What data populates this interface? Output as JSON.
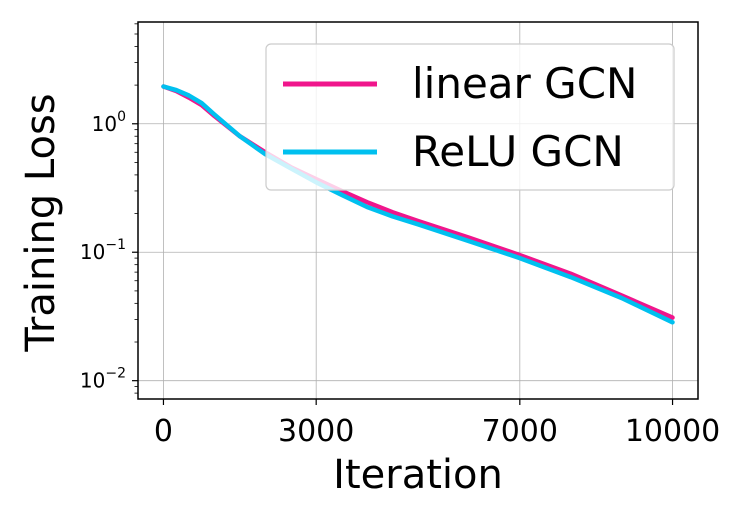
{
  "chart_data": {
    "type": "line",
    "title": "",
    "xlabel": "Iteration",
    "ylabel": "Training Loss",
    "xlim": [
      -500,
      10500
    ],
    "ylim": [
      0.0072,
      6.2
    ],
    "yscale": "log",
    "x_ticks": [
      {
        "value": 0,
        "label": "0"
      },
      {
        "value": 3000,
        "label": "3000"
      },
      {
        "value": 7000,
        "label": "7000"
      },
      {
        "value": 10000,
        "label": "10000"
      }
    ],
    "y_ticks": [
      {
        "value": 1,
        "base": "10",
        "exp": "0"
      },
      {
        "value": 0.1,
        "base": "10",
        "exp": "−1"
      },
      {
        "value": 0.01,
        "base": "10",
        "exp": "−2"
      }
    ],
    "grid": true,
    "legend": "top-right",
    "series": [
      {
        "name": "linear GCN",
        "color": "#f0168c",
        "x": [
          0,
          250,
          500,
          750,
          1000,
          1500,
          2000,
          2500,
          3000,
          3500,
          4000,
          4500,
          5000,
          6000,
          7000,
          8000,
          9000,
          10000
        ],
        "y": [
          1.95,
          1.8,
          1.6,
          1.4,
          1.15,
          0.8,
          0.6,
          0.46,
          0.37,
          0.3,
          0.245,
          0.205,
          0.175,
          0.13,
          0.095,
          0.068,
          0.046,
          0.031
        ]
      },
      {
        "name": "ReLU GCN",
        "color": "#00c0ef",
        "x": [
          0,
          250,
          500,
          750,
          1000,
          1500,
          2000,
          2500,
          3000,
          3500,
          4000,
          4500,
          5000,
          6000,
          7000,
          8000,
          9000,
          10000
        ],
        "y": [
          1.95,
          1.83,
          1.66,
          1.45,
          1.18,
          0.8,
          0.58,
          0.45,
          0.35,
          0.28,
          0.225,
          0.19,
          0.165,
          0.122,
          0.09,
          0.064,
          0.044,
          0.0285
        ]
      }
    ]
  }
}
